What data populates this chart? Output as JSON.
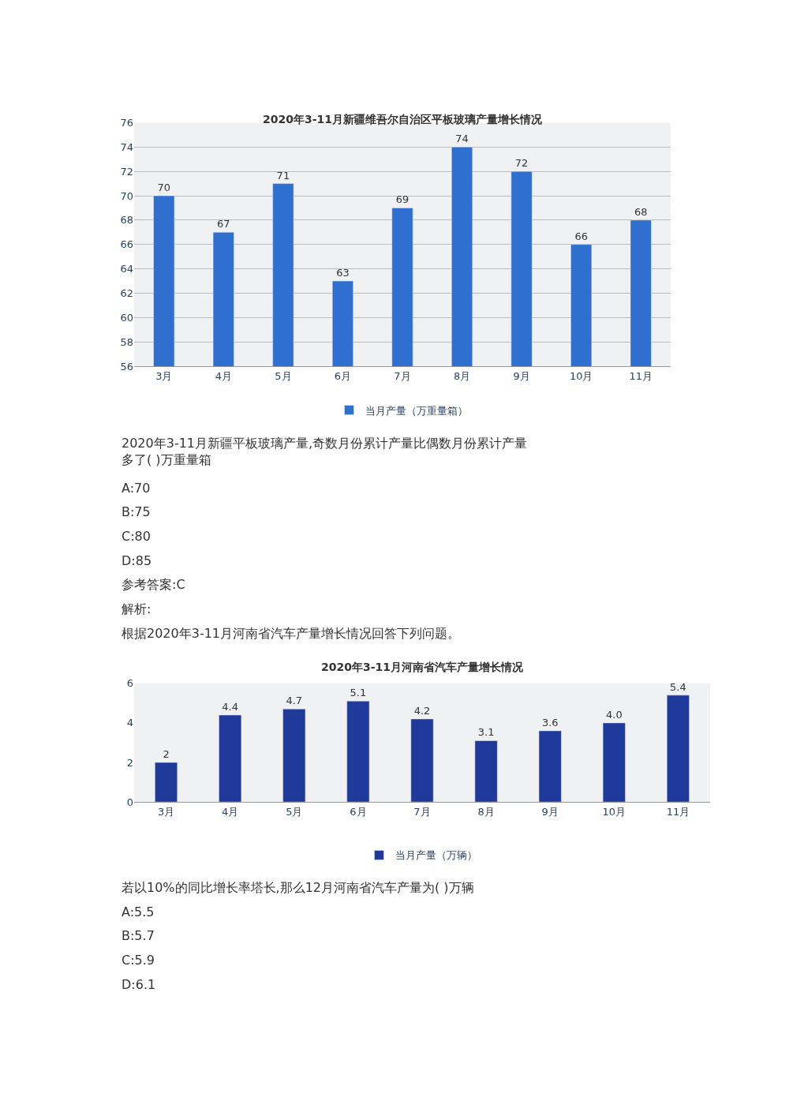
{
  "chart_data": [
    {
      "type": "bar",
      "title": "2020年3-11月新疆维吾尔自治区平板玻璃产量增长情况",
      "categories": [
        "3月",
        "4月",
        "5月",
        "6月",
        "7月",
        "8月",
        "9月",
        "10月",
        "11月"
      ],
      "series": [
        {
          "name": "当月产量（万重量箱）",
          "color": "#2f6fd0",
          "values": [
            70,
            67,
            71,
            63,
            69,
            74,
            72,
            66,
            68
          ]
        }
      ],
      "data_labels": true,
      "ylim": [
        56,
        76
      ],
      "yticks": [
        56,
        58,
        60,
        62,
        64,
        66,
        68,
        70,
        72,
        74,
        76
      ],
      "grid": "y",
      "legend": "bottom",
      "annotations": [
        "2020年3-11月新疆平板玻璃产量,奇数月份累计产量比偶数月份累计产量多了( )万重量箱",
        "A:70",
        "B:75",
        "C:80",
        "D:85",
        "参考答案:C",
        "解析:",
        "根据2020年3-11月河南省汽车产量增长情况回答下列问题。"
      ]
    },
    {
      "type": "bar",
      "title": "2020年3-11月河南省汽车产量增长情况",
      "categories": [
        "3月",
        "4月",
        "5月",
        "6月",
        "7月",
        "8月",
        "9月",
        "10月",
        "11月"
      ],
      "series": [
        {
          "name": "当月产量（万辆）",
          "color": "#1f3a9a",
          "values": [
            2,
            4.4,
            4.7,
            5.1,
            4.2,
            3.1,
            3.6,
            4.0,
            5.4
          ],
          "value_labels": [
            "2",
            "4.4",
            "4.7",
            "5.1",
            "4.2",
            "3.1",
            "3.6",
            "4.0",
            "5.4"
          ]
        }
      ],
      "ylim": [
        0,
        6
      ],
      "yticks": [
        0,
        2,
        4,
        6
      ],
      "grid": false,
      "legend": "bottom",
      "annotations": [
        "若以10%的同比增长率塔长,那么12月河南省汽车产量为( )万辆",
        "A:5.5",
        "B:5.7",
        "C:5.9",
        "D:6.1"
      ]
    }
  ]
}
